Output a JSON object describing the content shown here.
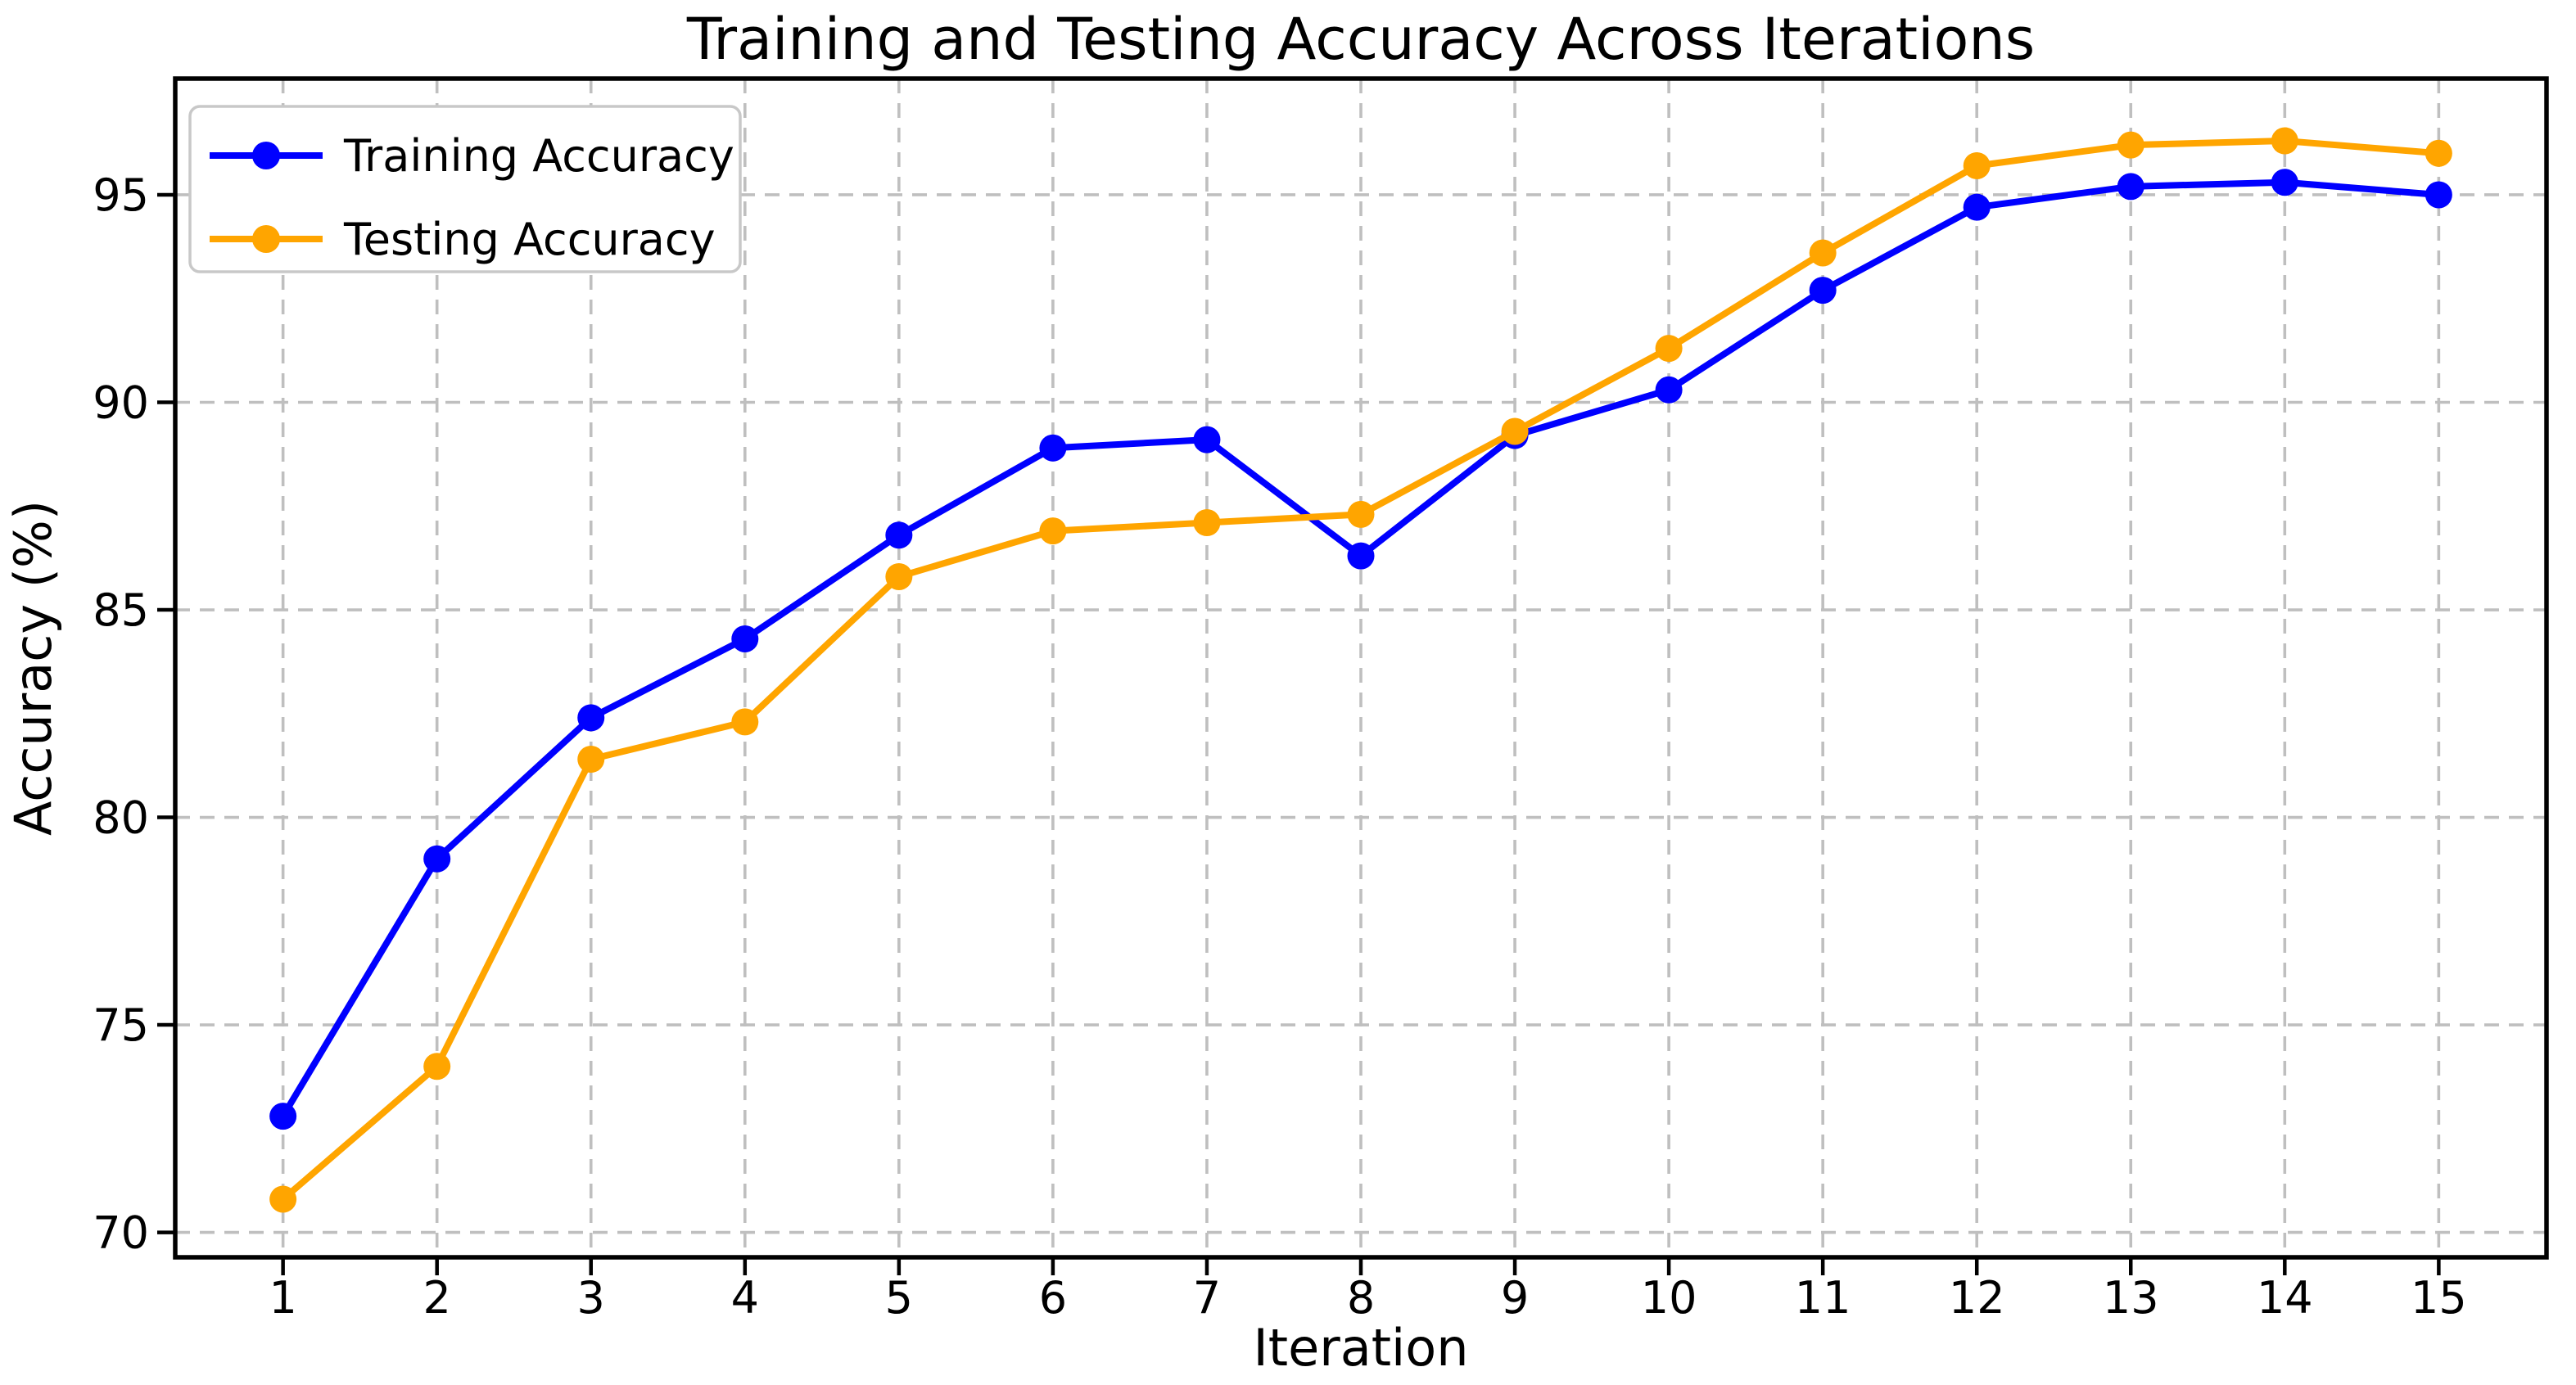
{
  "figure": {
    "title": "Training and Testing Accuracy Across Iterations",
    "background_color": "#ffffff"
  },
  "legend": {
    "position": "upper left",
    "items": [
      {
        "label": "Training Accuracy",
        "color": "#0000ff"
      },
      {
        "label": "Testing Accuracy",
        "color": "#ffa500"
      }
    ]
  },
  "chart_data": {
    "type": "line",
    "title": "Training and Testing Accuracy Across Iterations",
    "xlabel": "Iteration",
    "ylabel": "Accuracy (%)",
    "x": [
      1,
      2,
      3,
      4,
      5,
      6,
      7,
      8,
      9,
      10,
      11,
      12,
      13,
      14,
      15
    ],
    "series": [
      {
        "name": "Training Accuracy",
        "color": "#0000ff",
        "values": [
          72.8,
          79.0,
          82.4,
          84.3,
          86.8,
          88.9,
          89.1,
          86.3,
          89.2,
          90.3,
          92.7,
          94.7,
          95.2,
          95.3,
          95.0
        ]
      },
      {
        "name": "Testing Accuracy",
        "color": "#ffa500",
        "values": [
          70.8,
          74.0,
          81.4,
          82.3,
          85.8,
          86.9,
          87.1,
          87.3,
          89.3,
          91.3,
          93.6,
          95.7,
          96.2,
          96.3,
          96.0
        ]
      }
    ],
    "xlim": [
      0.3,
      15.7
    ],
    "ylim": [
      69.4,
      97.8
    ],
    "xticks": [
      1,
      2,
      3,
      4,
      5,
      6,
      7,
      8,
      9,
      10,
      11,
      12,
      13,
      14,
      15
    ],
    "yticks": [
      70,
      75,
      80,
      85,
      90,
      95
    ],
    "grid": true,
    "grid_style": "dashed",
    "grid_color": "#bfbfbf",
    "marker": "o",
    "legend_position": "upper left"
  }
}
